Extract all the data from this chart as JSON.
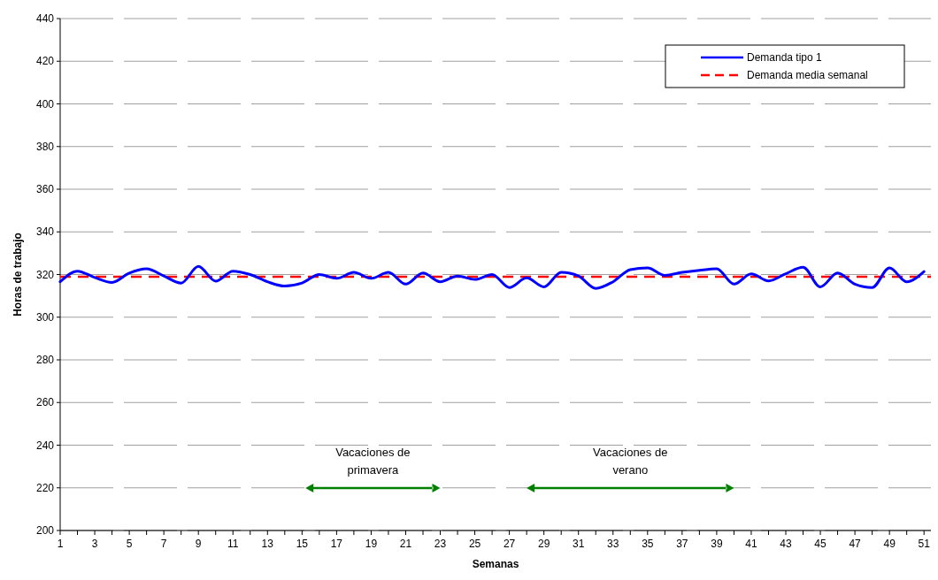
{
  "chart_data": {
    "type": "line",
    "xlabel": "Semanas",
    "ylabel": "Horas de trabajo",
    "x": [
      1,
      2,
      3,
      4,
      5,
      6,
      7,
      8,
      9,
      10,
      11,
      12,
      13,
      14,
      15,
      16,
      17,
      18,
      19,
      20,
      21,
      22,
      23,
      24,
      25,
      26,
      27,
      28,
      29,
      30,
      31,
      32,
      33,
      34,
      35,
      36,
      37,
      38,
      39,
      40,
      41,
      42,
      43,
      44,
      45,
      46,
      47,
      48,
      49,
      50,
      51
    ],
    "series": [
      {
        "name": "Demanda tipo 1",
        "color": "#0000ff",
        "line_style": "solid",
        "values": [
          316.6,
          321.6,
          318.6,
          316.3,
          320.7,
          322.7,
          319.3,
          316,
          323.8,
          316.9,
          321.6,
          320,
          316.6,
          314.6,
          316,
          320,
          318.2,
          321,
          318.2,
          321,
          315.5,
          320.7,
          316.6,
          319.3,
          317.7,
          320,
          313.9,
          318.4,
          314.2,
          321,
          319.3,
          313.5,
          316.6,
          322.3,
          323.1,
          319.6,
          321,
          322,
          322.7,
          315.5,
          320.3,
          317,
          320.4,
          323.4,
          314.2,
          320.7,
          315.5,
          313.9,
          323.1,
          316.6,
          321.4
        ]
      }
    ],
    "ref_lines": [
      {
        "axis": "y",
        "value": 319,
        "label": "Demanda media semanal",
        "color": "#ff0000",
        "line_style": "dashed"
      }
    ],
    "annotations": [
      "Vacaciones de primavera",
      "Vacaciones de verano"
    ],
    "xlim": [
      1,
      51.4
    ],
    "xticks": [
      1,
      {
        "value": 2,
        "label": null
      },
      3,
      {
        "value": 4,
        "label": null
      },
      5,
      {
        "value": 6,
        "label": null
      },
      7,
      {
        "value": 8,
        "label": null
      },
      9,
      {
        "value": 10,
        "label": null
      },
      11,
      {
        "value": 12,
        "label": null
      },
      13,
      {
        "value": 14,
        "label": null
      },
      15,
      {
        "value": 16,
        "label": null
      },
      17,
      {
        "value": 18,
        "label": null
      },
      19,
      {
        "value": 20,
        "label": null
      },
      21,
      {
        "value": 22,
        "label": null
      },
      23,
      {
        "value": 24,
        "label": null
      },
      25,
      {
        "value": 26,
        "label": null
      },
      27,
      {
        "value": 28,
        "label": null
      },
      29,
      {
        "value": 30,
        "label": null
      },
      31,
      {
        "value": 32,
        "label": null
      },
      33,
      {
        "value": 34,
        "label": null
      },
      35,
      {
        "value": 36,
        "label": null
      },
      37,
      {
        "value": 38,
        "label": null
      },
      39,
      {
        "value": 40,
        "label": null
      },
      41,
      {
        "value": 42,
        "label": null
      },
      43,
      {
        "value": 44,
        "label": null
      },
      45,
      {
        "value": 46,
        "label": null
      },
      47,
      {
        "value": 48,
        "label": null
      },
      49,
      {
        "value": 50,
        "label": null
      },
      51
    ],
    "ylim": [
      200,
      440
    ],
    "yticks": [
      200,
      220,
      240,
      260,
      280,
      300,
      320,
      340,
      360,
      380,
      400,
      420,
      440
    ],
    "grid": "y",
    "legend": "top right",
    "marker": "none"
  }
}
